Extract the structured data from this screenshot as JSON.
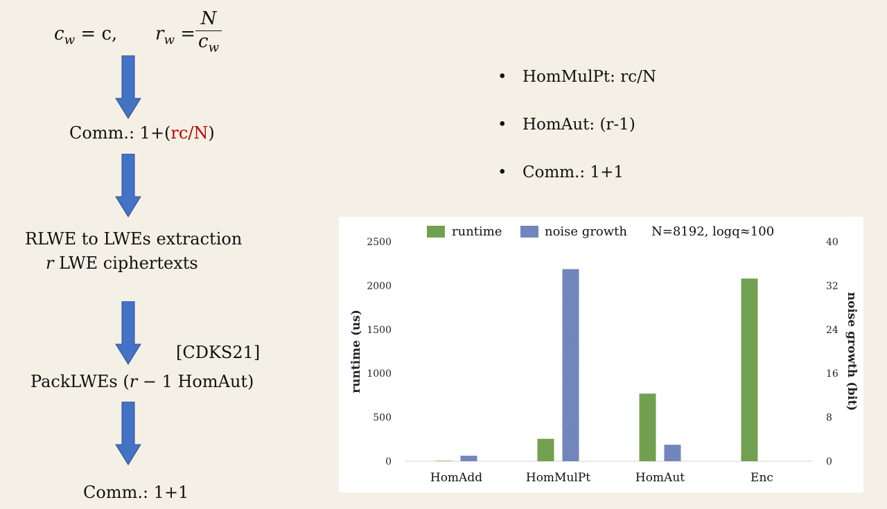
{
  "left_flow": {
    "eq1": {
      "lhs_base": "c",
      "lhs_sub": "w",
      "rhs": "= c,"
    },
    "eq2": {
      "lhs_base": "r",
      "lhs_sub": "w",
      "eq": "=",
      "numerator": "N",
      "den_base": "c",
      "den_sub": "w"
    },
    "step1": {
      "prefix": "Comm.: 1+(",
      "highlight": "rc/N",
      "suffix": ")"
    },
    "step2_line1": "RLWE to LWEs extraction",
    "step2_line2_var": "r",
    "step2_line2_rest": " LWE ciphertexts",
    "citation": "[CDKS21]",
    "step3": {
      "prefix": "PackLWEs (",
      "var": "r",
      "rest": " − 1 HomAut)"
    },
    "step4": "Comm.: 1+1",
    "arrow_color": "#4472c4"
  },
  "bullets": [
    "HomMulPt: rc/N",
    "HomAut: (r-1)",
    "Comm.: 1+1"
  ],
  "chart_data": {
    "type": "bar",
    "annotation": "N=8192, logq≈100",
    "categories": [
      "HomAdd",
      "HomMulPt",
      "HomAut",
      "Enc"
    ],
    "series": [
      {
        "name": "runtime",
        "axis": "left",
        "color": "#70a050",
        "values": [
          5,
          255,
          770,
          2080
        ]
      },
      {
        "name": "noise growth",
        "axis": "right",
        "color": "#7b8fc4",
        "values": [
          1,
          35,
          3,
          null
        ]
      }
    ],
    "ylabel": "runtime (us)",
    "ylim": [
      0,
      2500
    ],
    "yticks": [
      "0",
      "500",
      "1000",
      "1500",
      "2000",
      "2500"
    ],
    "y2label": "noise growth (bit)",
    "y2lim": [
      0,
      40
    ],
    "y2ticks": [
      "0",
      "8",
      "16",
      "24",
      "32",
      "40"
    ],
    "legend_position": "top",
    "grid": false
  }
}
